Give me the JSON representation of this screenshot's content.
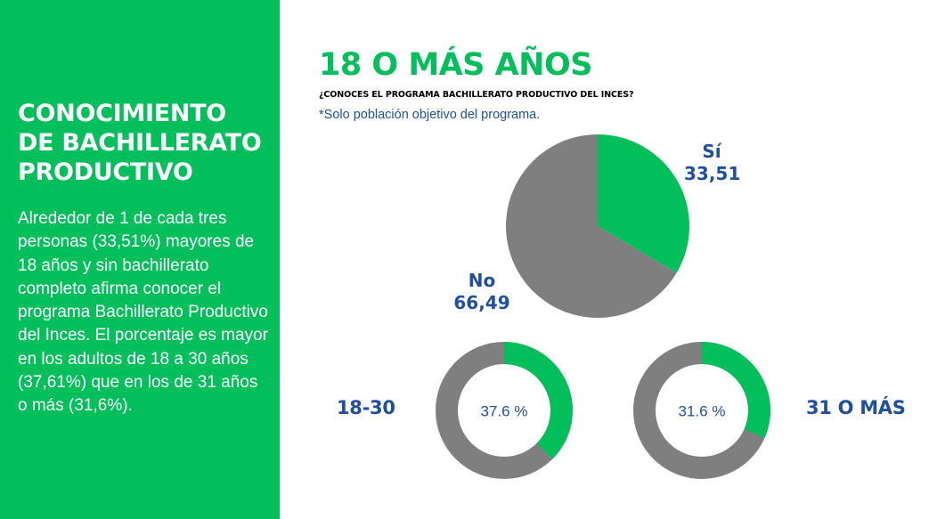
{
  "left_panel": {
    "title_line1": "CONOCIMIENTO",
    "title_line2": "DE BACHILLERATO",
    "title_line3": "PRODUCTIVO",
    "body": "Alrededor de 1 de cada tres personas (33,51%) mayores de 18 años y sin bachillerato completo afirma conocer el programa Bachillerato Productivo del Inces. El porcentaje es mayor en los adultos de 18 a 30 años (37,61%) que en los de 31 años o más (31,6%)."
  },
  "header": {
    "title": "18 O MÁS AÑOS",
    "question": "¿CONOCES EL PROGRAMA BACHILLERATO PRODUCTIVO DEL INCES?",
    "note": "*Solo población objetivo del programa."
  },
  "colors": {
    "green": "#03bf5b",
    "gray": "#7f7f7f",
    "blue": "#1f4fa0"
  },
  "chart_data": [
    {
      "type": "pie",
      "title": "18 O MÁS AÑOS",
      "slices": [
        {
          "label": "Sí",
          "value": 33.51,
          "display": "33,51",
          "color": "#03bf5b"
        },
        {
          "label": "No",
          "value": 66.49,
          "display": "66,49",
          "color": "#7f7f7f"
        }
      ]
    },
    {
      "type": "pie",
      "variant": "donut",
      "group": "18-30",
      "value": 37.6,
      "center_label": "37.6 %",
      "colors": [
        "#03bf5b",
        "#7f7f7f"
      ]
    },
    {
      "type": "pie",
      "variant": "donut",
      "group": "31 O MÁS",
      "value": 31.6,
      "center_label": "31.6 %",
      "colors": [
        "#03bf5b",
        "#7f7f7f"
      ]
    }
  ]
}
